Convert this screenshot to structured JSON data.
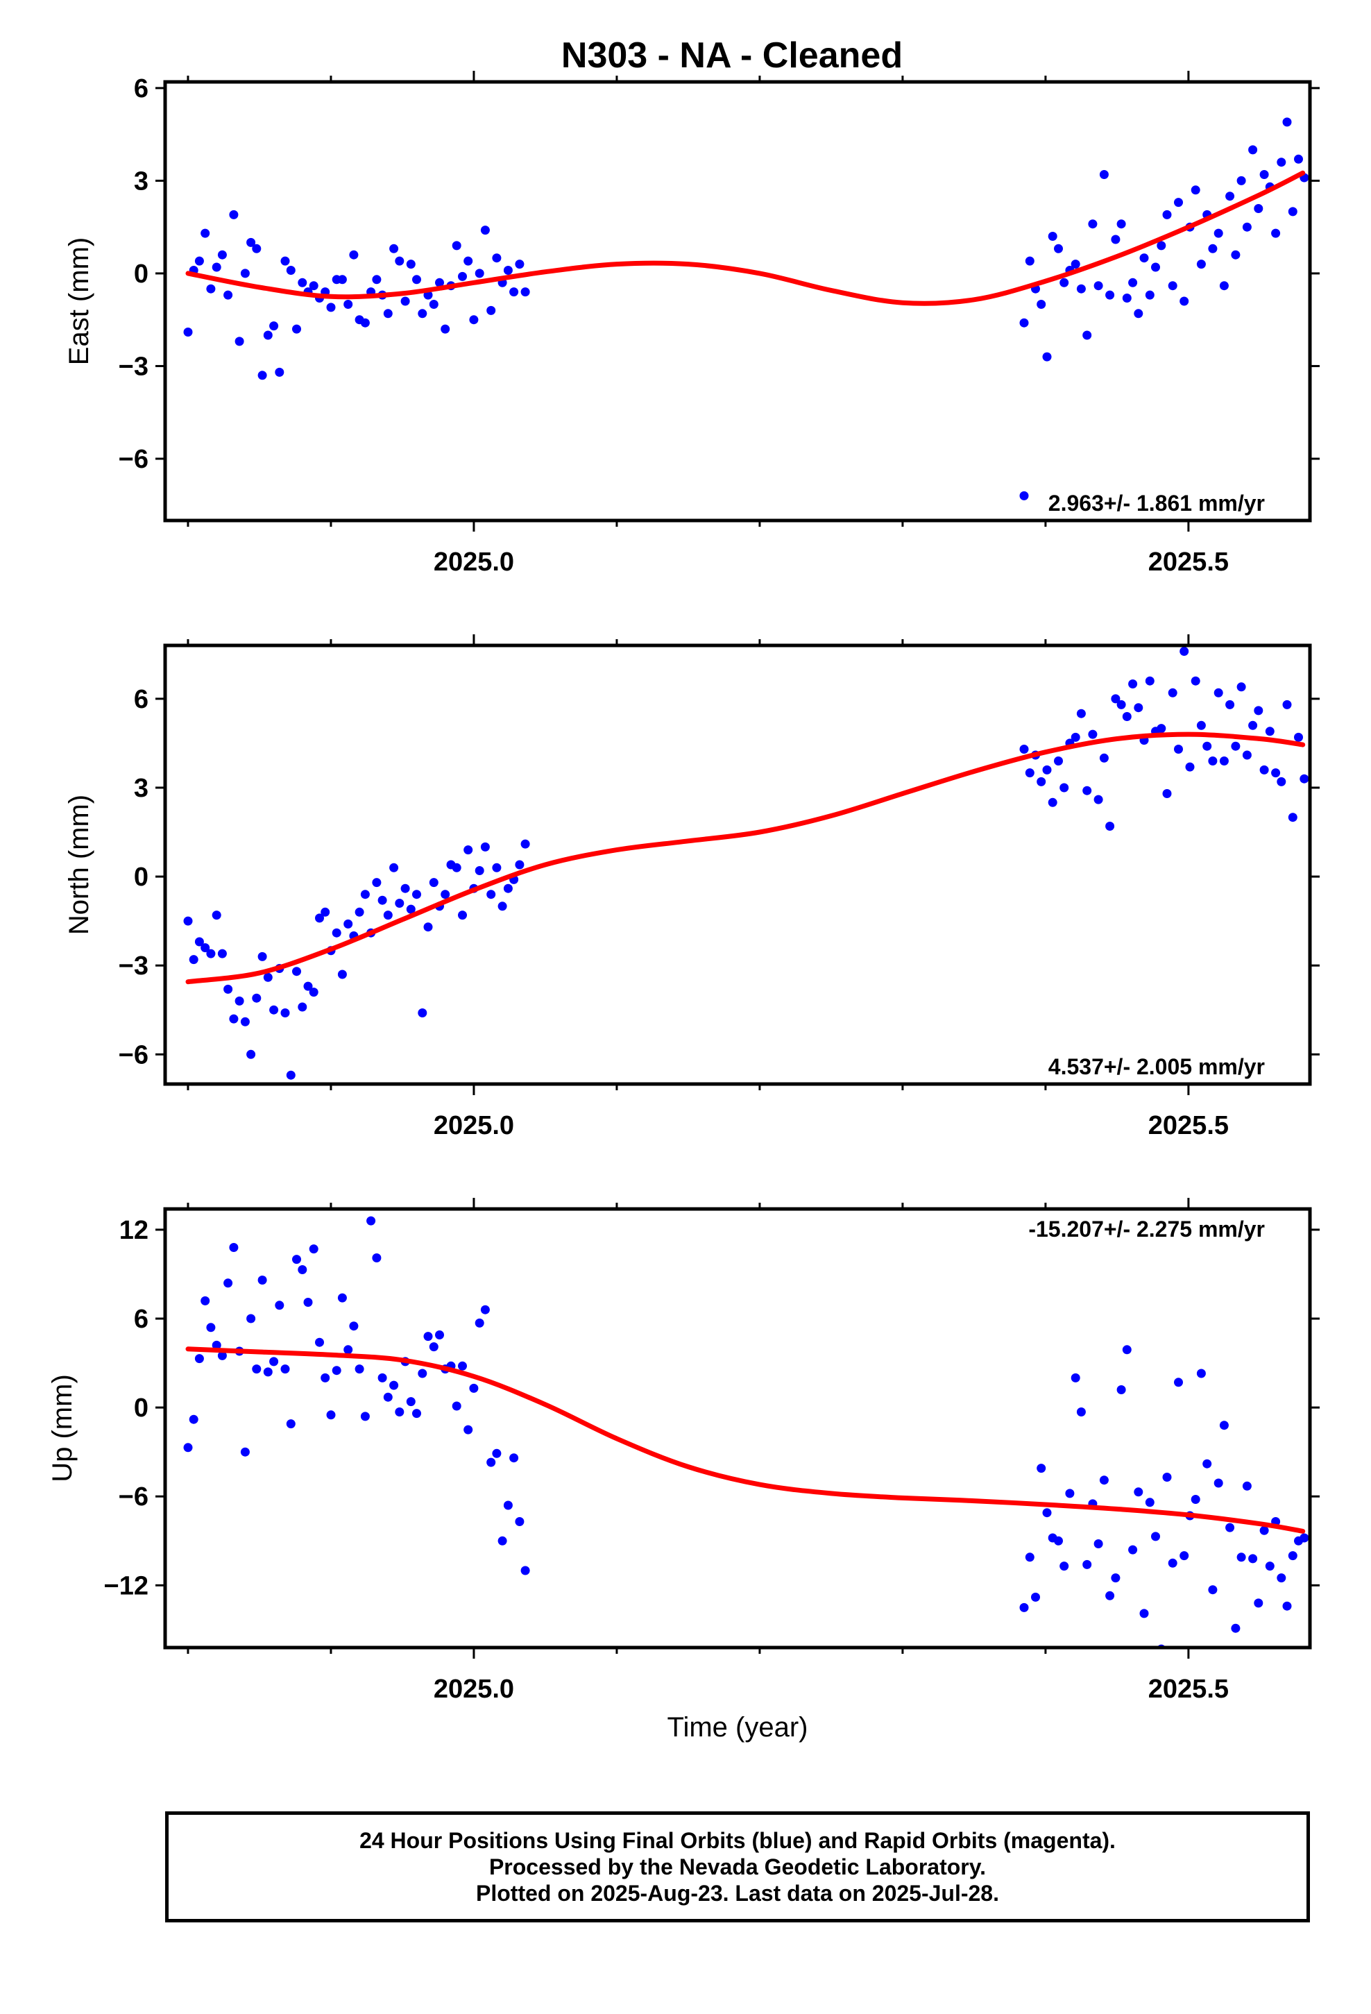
{
  "title": "N303  - NA - Cleaned",
  "footer": {
    "line1": "24 Hour Positions Using Final Orbits (blue) and Rapid Orbits (magenta).",
    "line2": "Processed by the Nevada Geodetic Laboratory.",
    "line3": "Plotted on 2025-Aug-23. Last data on 2025-Jul-28."
  },
  "colors": {
    "points": "#0000ff",
    "fit": "#ff0000",
    "frame": "#000000"
  },
  "chart_data": [
    {
      "type": "scatter",
      "ylabel": "East (mm)",
      "xlabel": "",
      "xlim": [
        2024.784,
        2025.585
      ],
      "ylim": [
        -8.0,
        6.2
      ],
      "xticks": [
        2025.0,
        2025.5
      ],
      "xtick_labels": [
        "2025.0",
        "2025.5"
      ],
      "xminor": [
        2024.8,
        2024.9,
        2025.0,
        2025.1,
        2025.2,
        2025.3,
        2025.4,
        2025.5
      ],
      "yticks": [
        -6,
        -3,
        0,
        3,
        6
      ],
      "ytick_labels": [
        "−6",
        "−3",
        "0",
        "3",
        "6"
      ],
      "rate_text": "2.963+/- 1.861 mm/yr",
      "rate_position": "bottom-right",
      "series": [
        {
          "marker": "points",
          "x": [
            2024.8,
            2024.804,
            2024.808,
            2024.812,
            2024.816,
            2024.82,
            2024.824,
            2024.828,
            2024.832,
            2024.836,
            2024.84,
            2024.844,
            2024.848,
            2024.852,
            2024.856,
            2024.86,
            2024.864,
            2024.868,
            2024.872,
            2024.876,
            2024.88,
            2024.884,
            2024.888,
            2024.892,
            2024.896,
            2024.9,
            2024.904,
            2024.908,
            2024.912,
            2024.916,
            2024.92,
            2024.924,
            2024.928,
            2024.932,
            2024.936,
            2024.94,
            2024.944,
            2024.948,
            2024.952,
            2024.956,
            2024.96,
            2024.964,
            2024.968,
            2024.972,
            2024.976,
            2024.98,
            2024.984,
            2024.988,
            2024.992,
            2024.996,
            2025.0,
            2025.004,
            2025.008,
            2025.012,
            2025.016,
            2025.02,
            2025.024,
            2025.028,
            2025.032,
            2025.036,
            2025.385,
            2025.389,
            2025.393,
            2025.397,
            2025.401,
            2025.405,
            2025.409,
            2025.413,
            2025.417,
            2025.421,
            2025.425,
            2025.429,
            2025.433,
            2025.437,
            2025.441,
            2025.445,
            2025.449,
            2025.453,
            2025.457,
            2025.461,
            2025.465,
            2025.469,
            2025.473,
            2025.477,
            2025.481,
            2025.485,
            2025.489,
            2025.493,
            2025.497,
            2025.501,
            2025.505,
            2025.509,
            2025.513,
            2025.517,
            2025.521,
            2025.525,
            2025.529,
            2025.533,
            2025.537,
            2025.541,
            2025.545,
            2025.549,
            2025.553,
            2025.557,
            2025.561,
            2025.565,
            2025.569,
            2025.573,
            2025.577,
            2025.581
          ],
          "y": [
            -1.9,
            0.1,
            0.4,
            1.3,
            -0.5,
            0.2,
            0.6,
            -0.7,
            1.9,
            -2.2,
            0.0,
            1.0,
            0.8,
            -3.3,
            -2.0,
            -1.7,
            -3.2,
            0.4,
            0.1,
            -1.8,
            -0.3,
            -0.6,
            -0.4,
            -0.8,
            -0.6,
            -1.1,
            -0.2,
            -0.2,
            -1.0,
            0.6,
            -1.5,
            -1.6,
            -0.6,
            -0.2,
            -0.7,
            -1.3,
            0.8,
            0.4,
            -0.9,
            0.3,
            -0.2,
            -1.3,
            -0.7,
            -1.0,
            -0.3,
            -1.8,
            -0.4,
            0.9,
            -0.1,
            0.4,
            -1.5,
            0.0,
            1.4,
            -1.2,
            0.5,
            -0.3,
            0.1,
            -0.6,
            0.3,
            -0.6,
            -1.6,
            0.4,
            -0.5,
            -1.0,
            -2.7,
            1.2,
            0.8,
            -0.3,
            0.1,
            0.3,
            -0.5,
            -2.0,
            1.6,
            -0.4,
            3.2,
            -0.7,
            1.1,
            1.6,
            -0.8,
            -0.3,
            -1.3,
            0.5,
            -0.7,
            0.2,
            0.9,
            1.9,
            -0.4,
            2.3,
            -0.9,
            1.5,
            2.7,
            0.3,
            1.9,
            0.8,
            1.3,
            -0.4,
            2.5,
            0.6,
            3.0,
            1.5,
            4.0,
            2.1,
            3.2,
            2.8,
            1.3,
            3.6,
            4.9,
            2.0,
            3.7,
            3.1
          ],
          "outliers": [
            {
              "x": 2025.385,
              "y": -7.2
            }
          ]
        },
        {
          "name": "",
          "type": "line",
          "x": [
            2024.8,
            2024.85,
            2024.9,
            2024.95,
            2025.0,
            2025.05,
            2025.1,
            2025.15,
            2025.2,
            2025.25,
            2025.3,
            2025.35,
            2025.4,
            2025.45,
            2025.5,
            2025.55,
            2025.58
          ],
          "y": [
            0.0,
            -0.45,
            -0.75,
            -0.65,
            -0.3,
            0.05,
            0.3,
            0.3,
            0.0,
            -0.55,
            -0.95,
            -0.85,
            -0.25,
            0.55,
            1.5,
            2.55,
            3.25
          ]
        }
      ]
    },
    {
      "type": "scatter",
      "ylabel": "North (mm)",
      "xlabel": "",
      "xlim": [
        2024.784,
        2025.585
      ],
      "ylim": [
        -7.0,
        7.8
      ],
      "xticks": [
        2025.0,
        2025.5
      ],
      "xtick_labels": [
        "2025.0",
        "2025.5"
      ],
      "xminor": [
        2024.8,
        2024.9,
        2025.0,
        2025.1,
        2025.2,
        2025.3,
        2025.4,
        2025.5
      ],
      "yticks": [
        -6,
        -3,
        0,
        3,
        6
      ],
      "ytick_labels": [
        "−6",
        "−3",
        "0",
        "3",
        "6"
      ],
      "rate_text": "4.537+/- 2.005 mm/yr",
      "rate_position": "bottom-right",
      "series": [
        {
          "marker": "points",
          "x": [
            2024.8,
            2024.804,
            2024.808,
            2024.812,
            2024.816,
            2024.82,
            2024.824,
            2024.828,
            2024.832,
            2024.836,
            2024.84,
            2024.844,
            2024.848,
            2024.852,
            2024.856,
            2024.86,
            2024.864,
            2024.868,
            2024.872,
            2024.876,
            2024.88,
            2024.884,
            2024.888,
            2024.892,
            2024.896,
            2024.9,
            2024.904,
            2024.908,
            2024.912,
            2024.916,
            2024.92,
            2024.924,
            2024.928,
            2024.932,
            2024.936,
            2024.94,
            2024.944,
            2024.948,
            2024.952,
            2024.956,
            2024.96,
            2024.964,
            2024.968,
            2024.972,
            2024.976,
            2024.98,
            2024.984,
            2024.988,
            2024.992,
            2024.996,
            2025.0,
            2025.004,
            2025.008,
            2025.012,
            2025.016,
            2025.02,
            2025.024,
            2025.028,
            2025.032,
            2025.036,
            2025.385,
            2025.389,
            2025.393,
            2025.397,
            2025.401,
            2025.405,
            2025.409,
            2025.413,
            2025.417,
            2025.421,
            2025.425,
            2025.429,
            2025.433,
            2025.437,
            2025.441,
            2025.445,
            2025.449,
            2025.453,
            2025.457,
            2025.461,
            2025.465,
            2025.469,
            2025.473,
            2025.477,
            2025.481,
            2025.485,
            2025.489,
            2025.493,
            2025.497,
            2025.501,
            2025.505,
            2025.509,
            2025.513,
            2025.517,
            2025.521,
            2025.525,
            2025.529,
            2025.533,
            2025.537,
            2025.541,
            2025.545,
            2025.549,
            2025.553,
            2025.557,
            2025.561,
            2025.565,
            2025.569,
            2025.573,
            2025.577,
            2025.581
          ],
          "y": [
            -1.5,
            -2.8,
            -2.2,
            -2.4,
            -2.6,
            -1.3,
            -2.6,
            -3.8,
            -4.8,
            -4.2,
            -4.9,
            -6.0,
            -4.1,
            -2.7,
            -3.4,
            -4.5,
            -3.1,
            -4.6,
            -6.7,
            -3.2,
            -4.4,
            -3.7,
            -3.9,
            -1.4,
            -1.2,
            -2.5,
            -1.9,
            -3.3,
            -1.6,
            -2.0,
            -1.2,
            -0.6,
            -1.9,
            -0.2,
            -0.8,
            -1.3,
            0.3,
            -0.9,
            -0.4,
            -1.1,
            -0.6,
            -4.6,
            -1.7,
            -0.2,
            -1.0,
            -0.6,
            0.4,
            0.3,
            -1.3,
            0.9,
            -0.4,
            0.2,
            1.0,
            -0.6,
            0.3,
            -1.0,
            -0.4,
            -0.1,
            0.4,
            1.1,
            4.3,
            3.5,
            4.1,
            3.2,
            3.6,
            2.5,
            3.9,
            3.0,
            4.5,
            4.7,
            5.5,
            2.9,
            4.8,
            2.6,
            4.0,
            1.7,
            6.0,
            5.8,
            5.4,
            6.5,
            5.7,
            4.6,
            6.6,
            4.9,
            5.0,
            2.8,
            6.2,
            4.3,
            7.6,
            3.7,
            6.6,
            5.1,
            4.4,
            3.9,
            6.2,
            3.9,
            5.8,
            4.4,
            6.4,
            4.1,
            5.1,
            5.6,
            3.6,
            4.9,
            3.5,
            3.2,
            5.8,
            2.0,
            4.7,
            3.3
          ]
        },
        {
          "name": "",
          "type": "line",
          "x": [
            2024.8,
            2024.85,
            2024.9,
            2024.95,
            2025.0,
            2025.05,
            2025.1,
            2025.15,
            2025.2,
            2025.25,
            2025.3,
            2025.35,
            2025.4,
            2025.45,
            2025.5,
            2025.55,
            2025.58
          ],
          "y": [
            -3.55,
            -3.25,
            -2.45,
            -1.45,
            -0.45,
            0.4,
            0.9,
            1.2,
            1.5,
            2.05,
            2.8,
            3.55,
            4.2,
            4.65,
            4.8,
            4.65,
            4.45
          ]
        }
      ]
    },
    {
      "type": "scatter",
      "ylabel": "Up (mm)",
      "xlabel": "Time (year)",
      "xlim": [
        2024.784,
        2025.585
      ],
      "ylim": [
        -16.2,
        13.4
      ],
      "xticks": [
        2025.0,
        2025.5
      ],
      "xtick_labels": [
        "2025.0",
        "2025.5"
      ],
      "xminor": [
        2024.8,
        2024.9,
        2025.0,
        2025.1,
        2025.2,
        2025.3,
        2025.4,
        2025.5
      ],
      "yticks": [
        -12,
        -6,
        0,
        6,
        12
      ],
      "ytick_labels": [
        "−12",
        "−6",
        "0",
        "6",
        "12"
      ],
      "rate_text": "-15.207+/- 2.275 mm/yr",
      "rate_position": "top-right",
      "series": [
        {
          "marker": "points",
          "x": [
            2024.8,
            2024.804,
            2024.808,
            2024.812,
            2024.816,
            2024.82,
            2024.824,
            2024.828,
            2024.832,
            2024.836,
            2024.84,
            2024.844,
            2024.848,
            2024.852,
            2024.856,
            2024.86,
            2024.864,
            2024.868,
            2024.872,
            2024.876,
            2024.88,
            2024.884,
            2024.888,
            2024.892,
            2024.896,
            2024.9,
            2024.904,
            2024.908,
            2024.912,
            2024.916,
            2024.92,
            2024.924,
            2024.928,
            2024.932,
            2024.936,
            2024.94,
            2024.944,
            2024.948,
            2024.952,
            2024.956,
            2024.96,
            2024.964,
            2024.968,
            2024.972,
            2024.976,
            2024.98,
            2024.984,
            2024.988,
            2024.992,
            2024.996,
            2025.0,
            2025.004,
            2025.008,
            2025.012,
            2025.016,
            2025.02,
            2025.024,
            2025.028,
            2025.032,
            2025.036,
            2025.385,
            2025.389,
            2025.393,
            2025.397,
            2025.401,
            2025.405,
            2025.409,
            2025.413,
            2025.417,
            2025.421,
            2025.425,
            2025.429,
            2025.433,
            2025.437,
            2025.441,
            2025.445,
            2025.449,
            2025.453,
            2025.457,
            2025.461,
            2025.465,
            2025.469,
            2025.473,
            2025.477,
            2025.481,
            2025.485,
            2025.489,
            2025.493,
            2025.497,
            2025.501,
            2025.505,
            2025.509,
            2025.513,
            2025.517,
            2025.521,
            2025.525,
            2025.529,
            2025.533,
            2025.537,
            2025.541,
            2025.545,
            2025.549,
            2025.553,
            2025.557,
            2025.561,
            2025.565,
            2025.569,
            2025.573,
            2025.577,
            2025.581
          ],
          "y": [
            -2.7,
            -0.8,
            3.3,
            7.2,
            5.4,
            4.2,
            3.5,
            8.4,
            10.8,
            3.8,
            -3.0,
            6.0,
            2.6,
            8.6,
            2.4,
            3.1,
            6.9,
            2.6,
            -1.1,
            10.0,
            9.3,
            7.1,
            10.7,
            4.4,
            2.0,
            -0.5,
            2.5,
            7.4,
            3.9,
            5.5,
            2.6,
            -0.6,
            12.6,
            10.1,
            2.0,
            0.7,
            1.5,
            -0.3,
            3.1,
            0.4,
            -0.4,
            2.3,
            4.8,
            4.1,
            4.9,
            2.6,
            2.8,
            0.1,
            2.8,
            -1.5,
            1.3,
            5.7,
            6.6,
            -3.7,
            -3.1,
            -9.0,
            -6.6,
            -3.4,
            -7.7,
            -11.0,
            -13.5,
            -10.1,
            -12.8,
            -4.1,
            -7.1,
            -8.8,
            -9.0,
            -10.7,
            -5.8,
            2.0,
            -0.3,
            -10.6,
            -6.5,
            -9.2,
            -4.9,
            -12.7,
            -11.5,
            1.2,
            3.9,
            -9.6,
            -5.7,
            -13.9,
            -6.4,
            -8.7,
            -16.3,
            -4.7,
            -10.5,
            1.7,
            -10.0,
            -7.3,
            -6.2,
            2.3,
            -3.8,
            -12.3,
            -5.1,
            -1.2,
            -8.1,
            -14.9,
            -10.1,
            -5.3,
            -10.2,
            -13.2,
            -8.3,
            -10.7,
            -7.7,
            -11.5,
            -13.4,
            -10.0,
            -9.0,
            -8.8
          ]
        },
        {
          "name": "",
          "type": "line",
          "x": [
            2024.8,
            2024.85,
            2024.9,
            2024.95,
            2025.0,
            2025.05,
            2025.1,
            2025.15,
            2025.2,
            2025.25,
            2025.3,
            2025.35,
            2025.4,
            2025.45,
            2025.5,
            2025.55,
            2025.58
          ],
          "y": [
            3.95,
            3.75,
            3.55,
            3.2,
            2.1,
            0.2,
            -2.1,
            -4.0,
            -5.2,
            -5.8,
            -6.1,
            -6.3,
            -6.55,
            -6.85,
            -7.25,
            -7.85,
            -8.35
          ]
        }
      ]
    }
  ]
}
